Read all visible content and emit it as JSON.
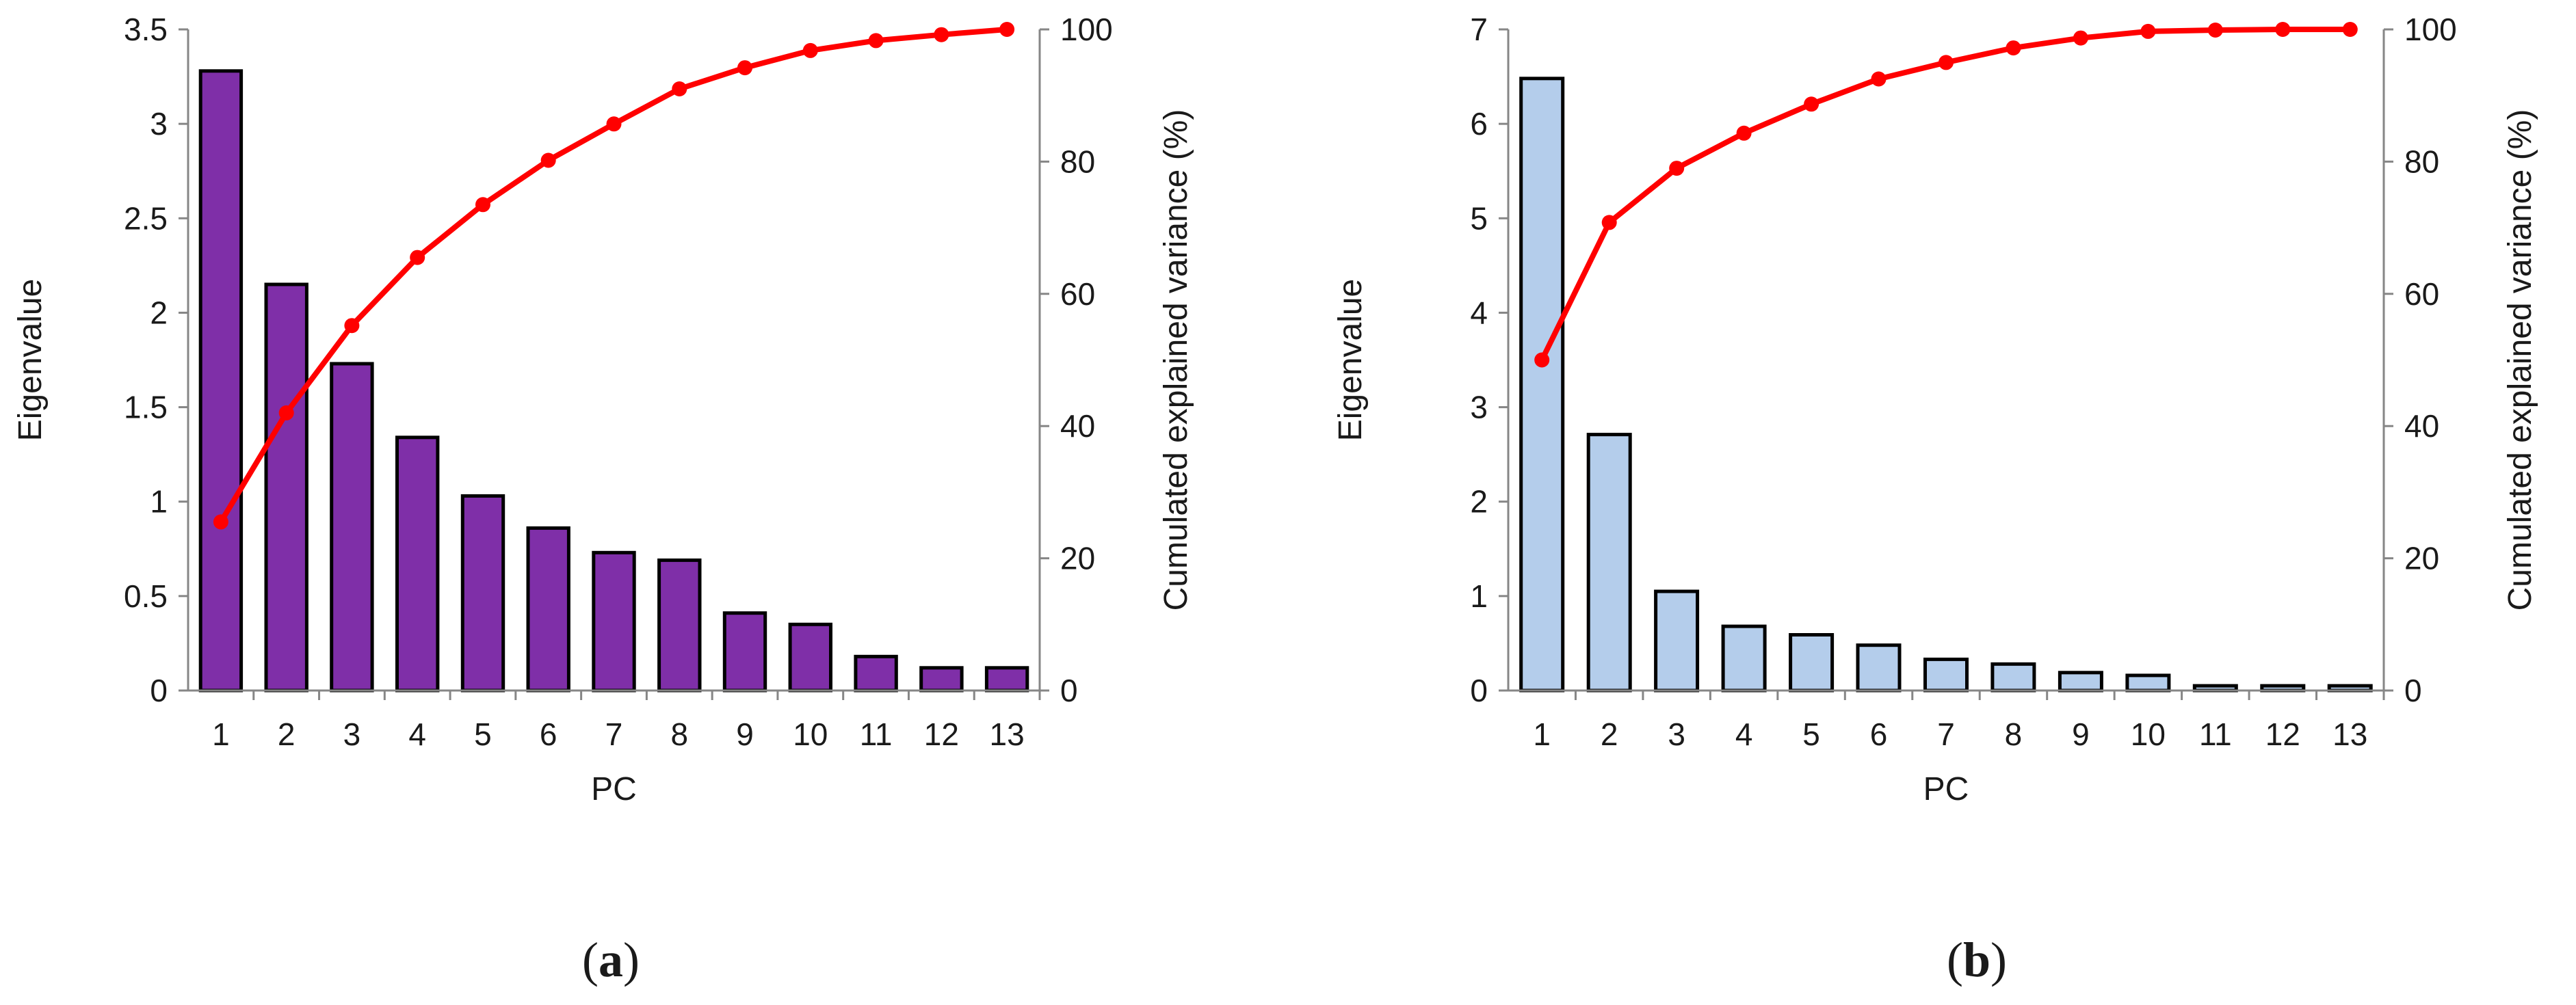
{
  "figure": {
    "panels": [
      {
        "caption_open": "(",
        "caption_letter": "a",
        "caption_close": ")"
      },
      {
        "caption_open": "(",
        "caption_letter": "b",
        "caption_close": ")"
      }
    ]
  },
  "chart_data": [
    {
      "type": "bar",
      "subtype": "bar + line, dual axis",
      "caption": "(a)",
      "xlabel": "PC",
      "ylabel": "Eigenvalue",
      "ylabel_right": "Cumulated explained variance (%)",
      "categories": [
        "1",
        "2",
        "3",
        "4",
        "5",
        "6",
        "7",
        "8",
        "9",
        "10",
        "11",
        "12",
        "13"
      ],
      "ylim": [
        0,
        3.5
      ],
      "yticks": [
        "0",
        "0.5",
        "1",
        "1.5",
        "2",
        "2.5",
        "3",
        "3.5"
      ],
      "ylim_right": [
        0,
        100
      ],
      "yticks_right": [
        "0",
        "20",
        "40",
        "60",
        "80",
        "100"
      ],
      "grid": false,
      "colors": {
        "bar": "#7F2FA8",
        "bar_edge": "#000000",
        "line": "#FF0000"
      },
      "series": [
        {
          "name": "Eigenvalue",
          "axis": "left",
          "type": "bar",
          "values": [
            3.28,
            2.15,
            1.73,
            1.34,
            1.03,
            0.86,
            0.73,
            0.69,
            0.41,
            0.35,
            0.18,
            0.12,
            0.12
          ]
        },
        {
          "name": "Cumulated explained variance",
          "axis": "right",
          "type": "line",
          "values": [
            25.5,
            42,
            55.2,
            65.5,
            73.5,
            80.2,
            85.7,
            91,
            94.2,
            96.8,
            98.3,
            99.2,
            100
          ]
        }
      ]
    },
    {
      "type": "bar",
      "subtype": "bar + line, dual axis",
      "caption": "(b)",
      "xlabel": "PC",
      "ylabel": "Eigenvalue",
      "ylabel_right": "Cumulated explained variance (%)",
      "categories": [
        "1",
        "2",
        "3",
        "4",
        "5",
        "6",
        "7",
        "8",
        "9",
        "10",
        "11",
        "12",
        "13"
      ],
      "ylim": [
        0,
        7
      ],
      "yticks": [
        "0",
        "1",
        "2",
        "3",
        "4",
        "5",
        "6",
        "7"
      ],
      "ylim_right": [
        0,
        100
      ],
      "yticks_right": [
        "0",
        "20",
        "40",
        "60",
        "80",
        "100"
      ],
      "grid": false,
      "colors": {
        "bar": "#B4CDEB",
        "bar_edge": "#000000",
        "line": "#FF0000"
      },
      "series": [
        {
          "name": "Eigenvalue",
          "axis": "left",
          "type": "bar",
          "values": [
            6.48,
            2.71,
            1.05,
            0.68,
            0.59,
            0.48,
            0.33,
            0.28,
            0.19,
            0.16,
            0.05,
            0.05,
            0.05
          ]
        },
        {
          "name": "Cumulated explained variance",
          "axis": "right",
          "type": "line",
          "values": [
            50,
            70.8,
            79,
            84.3,
            88.7,
            92.5,
            95,
            97.2,
            98.7,
            99.7,
            99.9,
            100,
            100
          ]
        }
      ]
    }
  ]
}
